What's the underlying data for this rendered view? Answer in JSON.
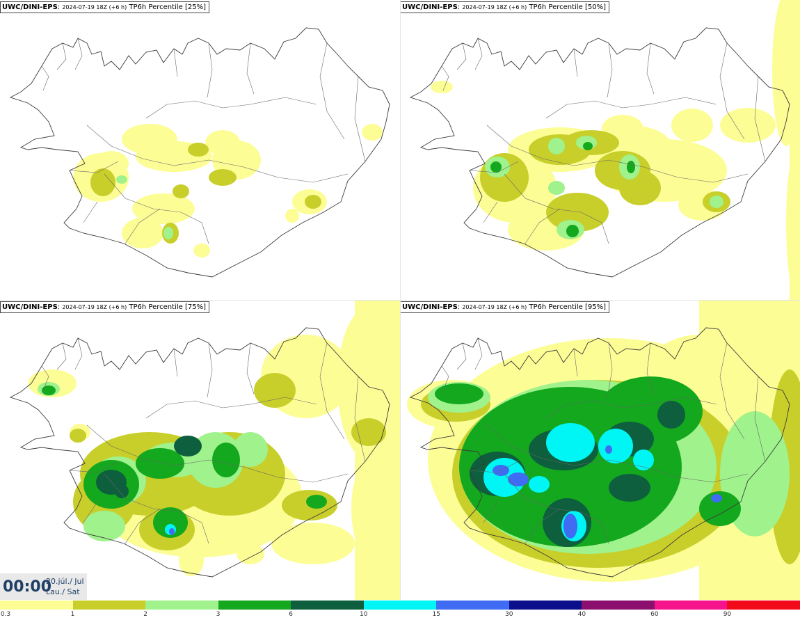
{
  "panels": [
    {
      "source": "UWC/DINI-EPS",
      "run": "2024-07-19 18Z (+6 h)",
      "product": "TP6h Percentile [25%]",
      "percentile": 25
    },
    {
      "source": "UWC/DINI-EPS",
      "run": "2024-07-19 18Z (+6 h)",
      "product": "TP6h Percentile [50%]",
      "percentile": 50
    },
    {
      "source": "UWC/DINI-EPS",
      "run": "2024-07-19 18Z (+6 h)",
      "product": "TP6h Percentile [75%]",
      "percentile": 75
    },
    {
      "source": "UWC/DINI-EPS",
      "run": "2024-07-19 18Z (+6 h)",
      "product": "TP6h Percentile [95%]",
      "percentile": 95
    }
  ],
  "time": {
    "main": "00:00",
    "date": "20.júl./ Jul",
    "day": "Lau./ Sat"
  },
  "legend": {
    "ticks": [
      "0.3",
      "1",
      "2",
      "3",
      "6",
      "10",
      "15",
      "30",
      "40",
      "60",
      "90"
    ],
    "colors": [
      "#fdfd96",
      "#c8cf2a",
      "#9ff28c",
      "#13a81e",
      "#0d5f3e",
      "#00f5f5",
      "#3f6cf2",
      "#0c0f8c",
      "#8a0f6e",
      "#f5148b",
      "#f20a1a"
    ]
  }
}
